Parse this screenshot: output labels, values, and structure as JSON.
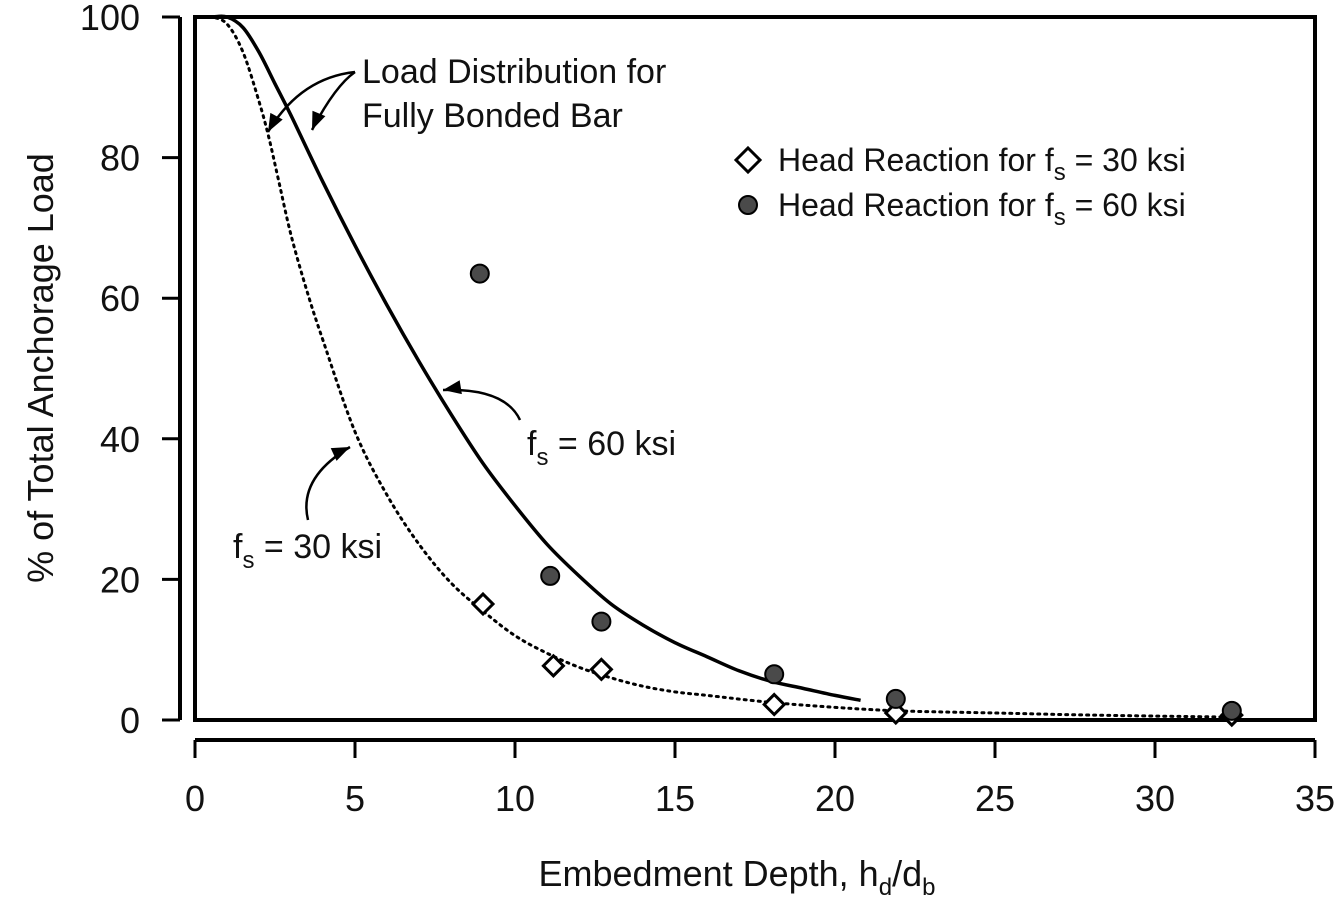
{
  "chart_data": {
    "type": "scatter",
    "xlabel": {
      "main": "Embedment Depth, h",
      "sub1": "d",
      "mid": "/d",
      "sub2": "b"
    },
    "ylabel": "% of Total Anchorage Load",
    "xlim": [
      0,
      35
    ],
    "ylim": [
      0,
      100
    ],
    "xticks": [
      "0",
      "5",
      "10",
      "15",
      "20",
      "25",
      "30",
      "35"
    ],
    "yticks": [
      "0",
      "20",
      "40",
      "60",
      "80",
      "100"
    ],
    "grid": false,
    "legend_position": "top-right",
    "legend": [
      {
        "pre": "Head Reaction for f",
        "sub": "s",
        "post": " = 30 ksi",
        "marker": "open-diamond"
      },
      {
        "pre": "Head Reaction for f",
        "sub": "s",
        "post": " = 60 ksi",
        "marker": "filled-circle"
      }
    ],
    "annotations": {
      "load_distribution": [
        "Load Distribution for",
        "Fully Bonded Bar"
      ],
      "fs60": {
        "pre": "f",
        "sub": "s",
        "post": " = 60 ksi"
      },
      "fs30": {
        "pre": "f",
        "sub": "s",
        "post": " = 30 ksi"
      }
    },
    "lines": [
      {
        "style": "solid",
        "x": [
          0,
          0.5,
          1.0,
          1.5,
          2.0,
          2.5,
          3.0,
          4.0,
          5.0,
          6.0,
          7.0,
          8.0,
          9.0,
          10.0,
          11.0,
          12.0,
          13.0,
          14.0,
          15.0,
          16.0,
          17.0,
          18.0,
          19.0,
          20.0,
          20.8
        ],
        "y": [
          100,
          100,
          100,
          98.5,
          95,
          90.5,
          86,
          76.5,
          67.5,
          59,
          51,
          43.5,
          36.5,
          30.5,
          25,
          20.5,
          16.5,
          13.5,
          11,
          9,
          7,
          5.5,
          4.5,
          3.5,
          2.8
        ]
      },
      {
        "style": "dotted",
        "x": [
          0,
          0.5,
          1.0,
          1.5,
          2.0,
          2.3,
          2.6,
          3.0,
          3.5,
          4.0,
          5.0,
          6.0,
          7.0,
          8.0,
          9.0,
          10.0,
          11.0,
          12.0,
          13.0,
          14.0,
          15.0,
          16.0,
          18.0,
          20.0,
          22.0,
          25.0,
          28.0,
          32.5
        ],
        "y": [
          100,
          100,
          99,
          95,
          88,
          83,
          77,
          69,
          61,
          54,
          41,
          32,
          25,
          19.5,
          15.5,
          12,
          9.5,
          7.5,
          6,
          4.8,
          4,
          3.5,
          2.5,
          1.8,
          1.3,
          1,
          0.7,
          0.4
        ]
      }
    ],
    "series": [
      {
        "marker": "open-diamond",
        "x": [
          9.0,
          11.2,
          12.7,
          18.1,
          21.9,
          32.4
        ],
        "y": [
          16.5,
          7.7,
          7.2,
          2.2,
          1.0,
          0.7
        ]
      },
      {
        "marker": "filled-circle",
        "x": [
          8.9,
          11.1,
          12.7,
          18.1,
          21.9,
          32.4
        ],
        "y": [
          63.5,
          20.5,
          14.0,
          6.5,
          3.0,
          1.3
        ]
      }
    ],
    "colors": {
      "axis": "#000000",
      "marker_fill": "#4a4a4a",
      "text": "#111111"
    }
  }
}
